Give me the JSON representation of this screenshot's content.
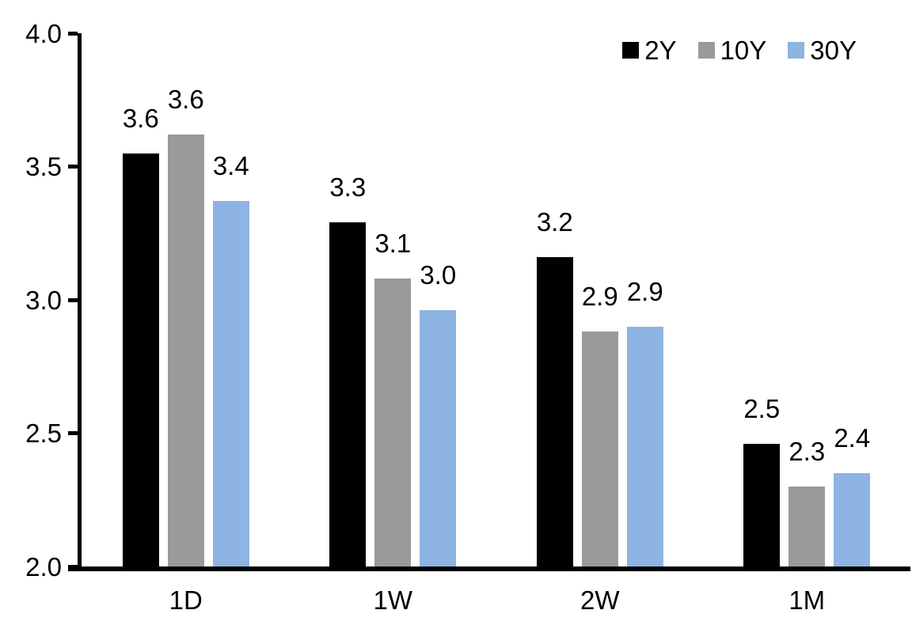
{
  "chart_data": {
    "type": "bar",
    "categories": [
      "1D",
      "1W",
      "2W",
      "1M"
    ],
    "series": [
      {
        "name": "2Y",
        "color": "#000000",
        "values": [
          3.55,
          3.29,
          3.16,
          2.46
        ],
        "labels": [
          "3.6",
          "3.3",
          "3.2",
          "2.5"
        ]
      },
      {
        "name": "10Y",
        "color": "#9A9A9A",
        "values": [
          3.62,
          3.08,
          2.88,
          2.3
        ],
        "labels": [
          "3.6",
          "3.1",
          "2.9",
          "2.3"
        ]
      },
      {
        "name": "30Y",
        "color": "#8DB4E2",
        "values": [
          3.37,
          2.96,
          2.9,
          2.35
        ],
        "labels": [
          "3.4",
          "3.0",
          "2.9",
          "2.4"
        ]
      }
    ],
    "title": "",
    "xlabel": "",
    "ylabel": "",
    "ylim": [
      2.0,
      4.0
    ],
    "yticks": [
      {
        "value": 4.0,
        "label": "4.0"
      },
      {
        "value": 3.5,
        "label": "3.5"
      },
      {
        "value": 3.0,
        "label": "3.0"
      },
      {
        "value": 2.5,
        "label": "2.5"
      },
      {
        "value": 2.0,
        "label": "2.0"
      }
    ],
    "grid": false,
    "legend_position": "top-right",
    "axis_color": "#000000",
    "background_color": "#FFFFFF",
    "data_labels_shown": true
  }
}
